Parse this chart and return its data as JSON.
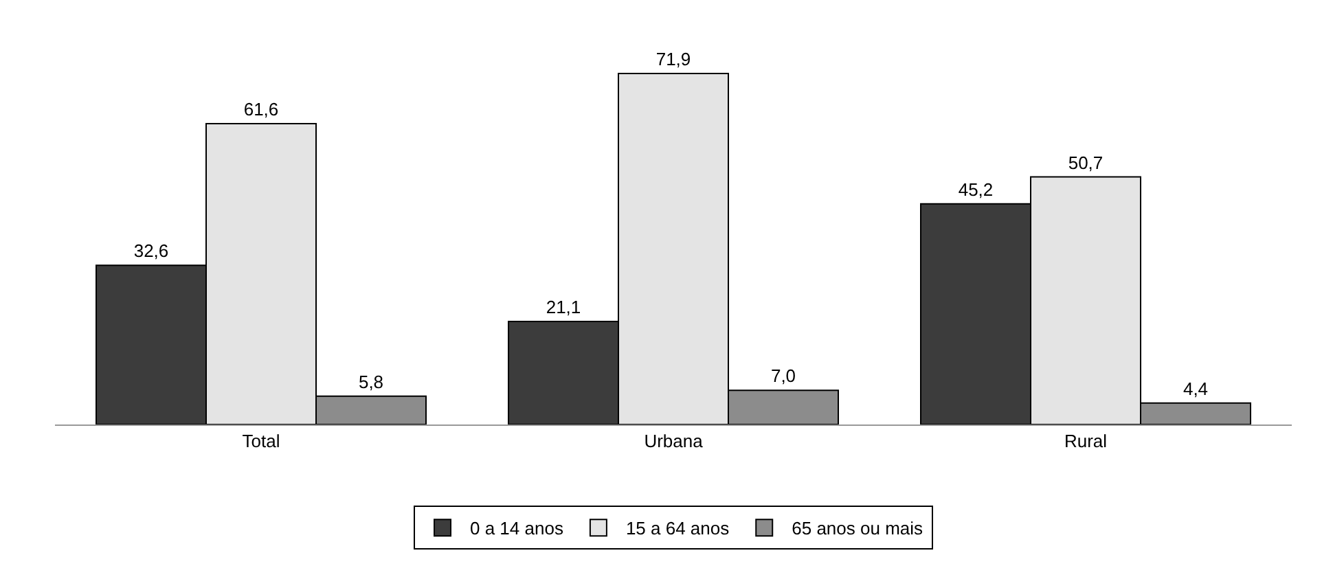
{
  "chart_data": {
    "type": "bar",
    "categories": [
      "Total",
      "Urbana",
      "Rural"
    ],
    "series": [
      {
        "name": "0 a 14 anos",
        "color": "#3c3c3c",
        "values": [
          32.6,
          21.1,
          45.2
        ],
        "value_labels": [
          "32,6",
          "21,1",
          "45,2"
        ]
      },
      {
        "name": "15 a 64 anos",
        "color": "#e4e4e4",
        "values": [
          61.6,
          71.9,
          50.7
        ],
        "value_labels": [
          "61,6",
          "71,9",
          "50,7"
        ]
      },
      {
        "name": "65 anos ou mais",
        "color": "#8c8c8c",
        "values": [
          5.8,
          7.0,
          4.4
        ],
        "value_labels": [
          "5,8",
          "7,0",
          "4,4"
        ]
      }
    ],
    "legend": "bottom"
  }
}
